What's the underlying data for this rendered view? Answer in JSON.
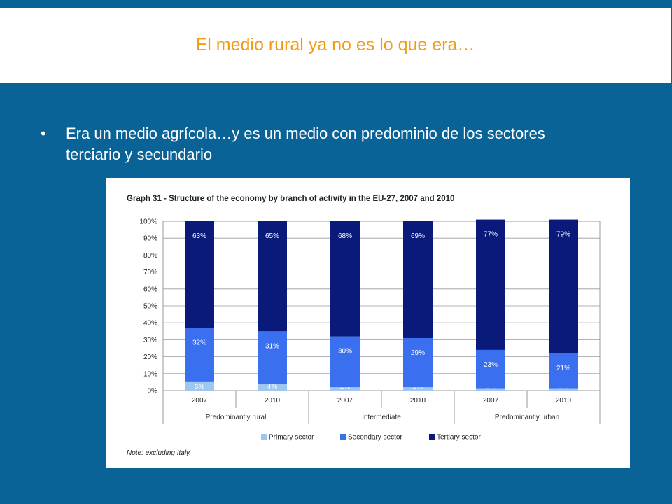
{
  "slide": {
    "title": "El medio rural ya no es lo que era…",
    "bullet_symbol": "•",
    "bullet_text": "Era un medio agrícola…y es un medio con predominio de los sectores terciario y secundario"
  },
  "chart_data": {
    "type": "bar",
    "stacked": true,
    "title": "Graph 31 - Structure of the economy by branch of activity in the EU-27, 2007 and 2010",
    "note": "Note: excluding Italy.",
    "categories": [
      "2007",
      "2010",
      "2007",
      "2010",
      "2007",
      "2010"
    ],
    "groups": [
      {
        "label": "Predominantly rural",
        "span": 2
      },
      {
        "label": "Intermediate",
        "span": 2
      },
      {
        "label": "Predominantly urban",
        "span": 2
      }
    ],
    "ylim": [
      0,
      100
    ],
    "yticks": [
      "0%",
      "10%",
      "20%",
      "30%",
      "40%",
      "50%",
      "60%",
      "70%",
      "80%",
      "90%",
      "100%"
    ],
    "grid": true,
    "legend_position": "bottom",
    "series": [
      {
        "name": "Primary sector",
        "color": "#9fc6ee",
        "labelColor": "#ffffff",
        "values": [
          5,
          4,
          2,
          2,
          1,
          1
        ],
        "labels": [
          "5%",
          "4%",
          "2%",
          "2%",
          "1%",
          "1%"
        ]
      },
      {
        "name": "Secondary sector",
        "color": "#3a70f0",
        "labelColor": "#ffffff",
        "values": [
          32,
          31,
          30,
          29,
          23,
          21
        ],
        "labels": [
          "32%",
          "31%",
          "30%",
          "29%",
          "23%",
          "21%"
        ]
      },
      {
        "name": "Tertiary sector",
        "color": "#0a1a7a",
        "labelColor": "#ffffff",
        "values": [
          63,
          65,
          68,
          69,
          77,
          79
        ],
        "labels": [
          "63%",
          "65%",
          "68%",
          "69%",
          "77%",
          "79%"
        ]
      }
    ]
  }
}
